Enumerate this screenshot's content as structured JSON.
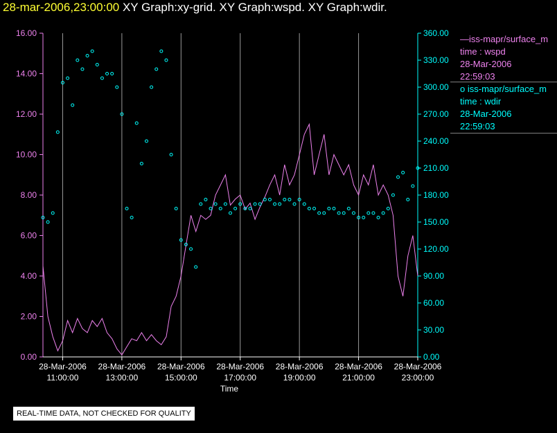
{
  "header": {
    "timestamp": "28-mar-2006,23:00:00",
    "graphs": "XY Graph:xy-grid.  XY Graph:wspd.  XY Graph:wdir."
  },
  "legend": {
    "wspd": {
      "marker": "—",
      "name": "iss-mapr/surface_m",
      "var": "time : wspd",
      "date": "28-Mar-2006",
      "time": "22:59:03"
    },
    "wdir": {
      "marker": "o",
      "name": "iss-mapr/surface_m",
      "var": "time : wdir",
      "date": "28-Mar-2006",
      "time": "22:59:03"
    }
  },
  "notice": "REAL-TIME DATA, NOT CHECKED FOR QUALITY",
  "chart_data": {
    "type": "line",
    "xlabel": "Time",
    "x_range": [
      "28-Mar-2006 10:20",
      "28-Mar-2006 23:00"
    ],
    "x_ticks": [
      {
        "date": "28-Mar-2006",
        "time": "11:00:00"
      },
      {
        "date": "28-Mar-2006",
        "time": "13:00:00"
      },
      {
        "date": "28-Mar-2006",
        "time": "15:00:00"
      },
      {
        "date": "28-Mar-2006",
        "time": "17:00:00"
      },
      {
        "date": "28-Mar-2006",
        "time": "19:00:00"
      },
      {
        "date": "28-Mar-2006",
        "time": "21:00:00"
      },
      {
        "date": "28-Mar-2006",
        "time": "23:00:00"
      }
    ],
    "y_left": {
      "ylim": [
        0,
        16
      ],
      "ticks": [
        "0.00",
        "2.00",
        "4.00",
        "6.00",
        "8.00",
        "10.00",
        "12.00",
        "14.00",
        "16.00"
      ],
      "color": "#ee82ee"
    },
    "y_right": {
      "ylim": [
        0,
        360
      ],
      "ticks": [
        "0.00",
        "30.00",
        "60.00",
        "90.00",
        "120.00",
        "150.00",
        "180.00",
        "210.00",
        "240.00",
        "270.00",
        "300.00",
        "330.00",
        "360.00"
      ],
      "color": "#00ffff"
    },
    "grid": "vertical lines at each x tick",
    "series": [
      {
        "axis": "left",
        "color": "#ee82ee",
        "style": "line",
        "points": [
          [
            "10:20",
            4.5
          ],
          [
            "10:30",
            2.0
          ],
          [
            "10:40",
            1.0
          ],
          [
            "10:50",
            0.3
          ],
          [
            "11:00",
            0.8
          ],
          [
            "11:10",
            1.8
          ],
          [
            "11:20",
            1.2
          ],
          [
            "11:30",
            1.9
          ],
          [
            "11:40",
            1.4
          ],
          [
            "11:50",
            1.2
          ],
          [
            "12:00",
            1.8
          ],
          [
            "12:10",
            1.5
          ],
          [
            "12:20",
            1.9
          ],
          [
            "12:30",
            1.2
          ],
          [
            "12:40",
            0.9
          ],
          [
            "12:50",
            0.4
          ],
          [
            "13:00",
            0.1
          ],
          [
            "13:10",
            0.5
          ],
          [
            "13:20",
            0.9
          ],
          [
            "13:30",
            0.8
          ],
          [
            "13:40",
            1.2
          ],
          [
            "13:50",
            0.8
          ],
          [
            "14:00",
            1.1
          ],
          [
            "14:10",
            0.8
          ],
          [
            "14:20",
            0.6
          ],
          [
            "14:30",
            1.0
          ],
          [
            "14:40",
            2.5
          ],
          [
            "14:50",
            3.0
          ],
          [
            "15:00",
            4.0
          ],
          [
            "15:10",
            5.5
          ],
          [
            "15:20",
            7.0
          ],
          [
            "15:30",
            6.2
          ],
          [
            "15:40",
            7.0
          ],
          [
            "15:50",
            6.8
          ],
          [
            "16:00",
            7.0
          ],
          [
            "16:10",
            8.0
          ],
          [
            "16:20",
            8.5
          ],
          [
            "16:30",
            9.0
          ],
          [
            "16:40",
            7.5
          ],
          [
            "16:50",
            7.8
          ],
          [
            "17:00",
            8.0
          ],
          [
            "17:10",
            7.3
          ],
          [
            "17:20",
            7.6
          ],
          [
            "17:30",
            6.8
          ],
          [
            "17:40",
            7.4
          ],
          [
            "17:50",
            7.9
          ],
          [
            "18:00",
            8.5
          ],
          [
            "18:10",
            9.0
          ],
          [
            "18:20",
            8.0
          ],
          [
            "18:30",
            9.5
          ],
          [
            "18:40",
            8.5
          ],
          [
            "18:50",
            9.0
          ],
          [
            "19:00",
            10.0
          ],
          [
            "19:10",
            11.0
          ],
          [
            "19:20",
            11.5
          ],
          [
            "19:30",
            9.0
          ],
          [
            "19:40",
            10.0
          ],
          [
            "19:50",
            11.0
          ],
          [
            "20:00",
            9.0
          ],
          [
            "20:10",
            10.0
          ],
          [
            "20:20",
            9.5
          ],
          [
            "20:30",
            9.0
          ],
          [
            "20:40",
            9.5
          ],
          [
            "20:50",
            8.5
          ],
          [
            "21:00",
            8.0
          ],
          [
            "21:10",
            9.0
          ],
          [
            "21:20",
            8.5
          ],
          [
            "21:30",
            9.5
          ],
          [
            "21:40",
            8.0
          ],
          [
            "21:50",
            8.5
          ],
          [
            "22:00",
            8.0
          ],
          [
            "22:10",
            7.0
          ],
          [
            "22:20",
            4.0
          ],
          [
            "22:30",
            3.0
          ],
          [
            "22:40",
            5.0
          ],
          [
            "22:50",
            6.0
          ],
          [
            "23:00",
            4.0
          ]
        ]
      },
      {
        "axis": "right",
        "color": "#00ffff",
        "style": "circles",
        "points": [
          [
            "10:20",
            155
          ],
          [
            "10:30",
            150
          ],
          [
            "10:40",
            160
          ],
          [
            "10:50",
            250
          ],
          [
            "11:00",
            305
          ],
          [
            "11:10",
            310
          ],
          [
            "11:20",
            280
          ],
          [
            "11:30",
            330
          ],
          [
            "11:40",
            320
          ],
          [
            "11:50",
            335
          ],
          [
            "12:00",
            340
          ],
          [
            "12:10",
            325
          ],
          [
            "12:20",
            310
          ],
          [
            "12:30",
            315
          ],
          [
            "12:40",
            315
          ],
          [
            "12:50",
            300
          ],
          [
            "13:00",
            270
          ],
          [
            "13:10",
            165
          ],
          [
            "13:20",
            155
          ],
          [
            "13:30",
            260
          ],
          [
            "13:40",
            215
          ],
          [
            "13:50",
            240
          ],
          [
            "14:00",
            300
          ],
          [
            "14:10",
            320
          ],
          [
            "14:20",
            340
          ],
          [
            "14:30",
            330
          ],
          [
            "14:40",
            225
          ],
          [
            "14:50",
            165
          ],
          [
            "15:00",
            130
          ],
          [
            "15:10",
            125
          ],
          [
            "15:20",
            120
          ],
          [
            "15:30",
            100
          ],
          [
            "15:40",
            170
          ],
          [
            "15:50",
            175
          ],
          [
            "16:00",
            165
          ],
          [
            "16:10",
            170
          ],
          [
            "16:20",
            165
          ],
          [
            "16:30",
            170
          ],
          [
            "16:40",
            160
          ],
          [
            "16:50",
            165
          ],
          [
            "17:00",
            170
          ],
          [
            "17:10",
            165
          ],
          [
            "17:20",
            165
          ],
          [
            "17:30",
            170
          ],
          [
            "17:40",
            170
          ],
          [
            "17:50",
            175
          ],
          [
            "18:00",
            175
          ],
          [
            "18:10",
            170
          ],
          [
            "18:20",
            170
          ],
          [
            "18:30",
            175
          ],
          [
            "18:40",
            175
          ],
          [
            "18:50",
            170
          ],
          [
            "19:00",
            175
          ],
          [
            "19:10",
            170
          ],
          [
            "19:20",
            165
          ],
          [
            "19:30",
            165
          ],
          [
            "19:40",
            160
          ],
          [
            "19:50",
            160
          ],
          [
            "20:00",
            165
          ],
          [
            "20:10",
            165
          ],
          [
            "20:20",
            160
          ],
          [
            "20:30",
            160
          ],
          [
            "20:40",
            165
          ],
          [
            "20:50",
            160
          ],
          [
            "21:00",
            155
          ],
          [
            "21:10",
            155
          ],
          [
            "21:20",
            160
          ],
          [
            "21:30",
            160
          ],
          [
            "21:40",
            155
          ],
          [
            "21:50",
            160
          ],
          [
            "22:00",
            165
          ],
          [
            "22:10",
            180
          ],
          [
            "22:20",
            200
          ],
          [
            "22:30",
            205
          ],
          [
            "22:40",
            175
          ],
          [
            "22:50",
            190
          ],
          [
            "23:00",
            210
          ]
        ]
      }
    ]
  }
}
